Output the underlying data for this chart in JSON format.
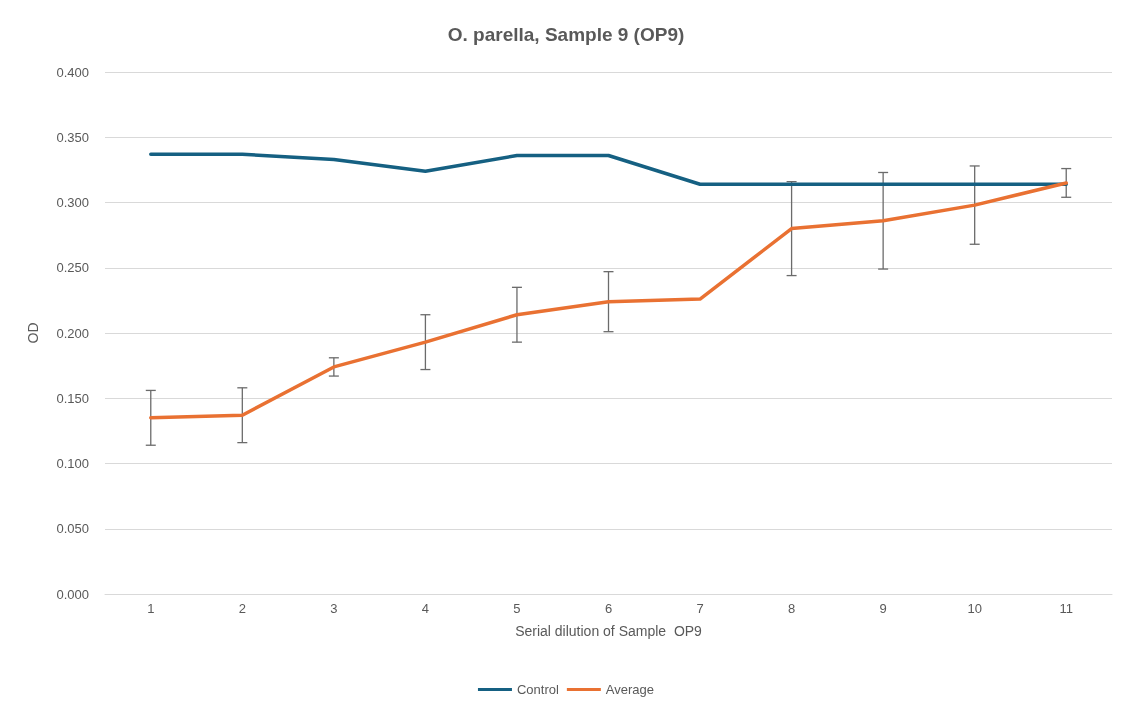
{
  "chart_data": {
    "type": "line",
    "title": "O. parella, Sample 9 (OP9)",
    "xlabel": "Serial dilution of Sample  OP9",
    "ylabel": "OD",
    "categories": [
      "1",
      "2",
      "3",
      "4",
      "5",
      "6",
      "7",
      "8",
      "9",
      "10",
      "11"
    ],
    "series": [
      {
        "name": "Control",
        "color": "#156082",
        "values": [
          0.337,
          0.337,
          0.333,
          0.324,
          0.336,
          0.336,
          0.314,
          0.314,
          0.314,
          0.314,
          0.314
        ]
      },
      {
        "name": "Average",
        "color": "#e97132",
        "values": [
          0.135,
          0.137,
          0.174,
          0.193,
          0.214,
          0.224,
          0.226,
          0.28,
          0.286,
          0.298,
          0.315
        ],
        "errors": [
          0.021,
          0.021,
          0.007,
          0.021,
          0.021,
          0.023,
          null,
          0.036,
          0.037,
          0.03,
          0.011
        ]
      }
    ],
    "ylim": [
      0,
      0.4
    ],
    "yticks": [
      {
        "value": 0,
        "label": "0.000"
      },
      {
        "value": 0.05,
        "label": "0.050"
      },
      {
        "value": 0.1,
        "label": "0.100"
      },
      {
        "value": 0.15,
        "label": "0.150"
      },
      {
        "value": 0.2,
        "label": "0.200"
      },
      {
        "value": 0.25,
        "label": "0.250"
      },
      {
        "value": 0.3,
        "label": "0.300"
      },
      {
        "value": 0.35,
        "label": "0.350"
      },
      {
        "value": 0.4,
        "label": "0.400"
      }
    ],
    "grid": "y",
    "legend": "bottom",
    "marker": "none",
    "line_style": "solid"
  }
}
